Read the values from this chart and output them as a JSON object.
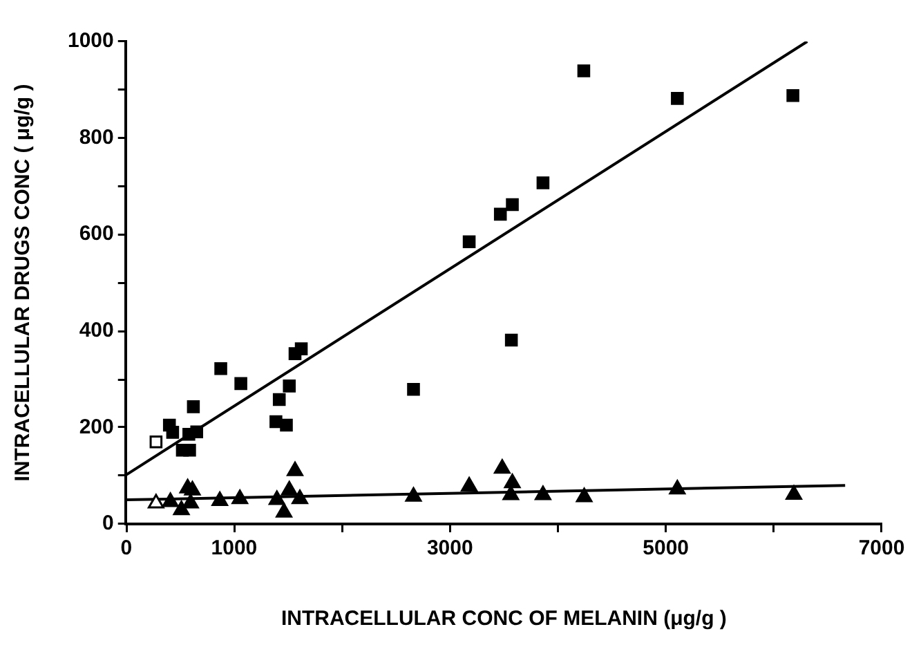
{
  "chart_data": {
    "type": "scatter",
    "xlabel": "INTRACELLULAR CONC OF MELANIN (μg/g )",
    "ylabel": "INTRACELLULAR DRUGS CONC ( μg/g )",
    "xlim": [
      0,
      7000
    ],
    "ylim": [
      0,
      1000
    ],
    "xticks": [
      0,
      1000,
      {
        "value": 2000,
        "label": null
      },
      3000,
      {
        "value": 4000,
        "label": null
      },
      5000,
      {
        "value": 6000,
        "label": null
      },
      7000
    ],
    "yticks": [
      0,
      {
        "value": 100,
        "label": null
      },
      200,
      {
        "value": 300,
        "label": null
      },
      400,
      {
        "value": 500,
        "label": null
      },
      600,
      {
        "value": 700,
        "label": null
      },
      800,
      {
        "value": 900,
        "label": null
      },
      1000
    ],
    "grid": false,
    "legend": false,
    "series": [
      {
        "color": "#000000",
        "marker": "square",
        "x": [
          276,
          400,
          430,
          520,
          587,
          622,
          580,
          653,
          876,
          1062,
          1387,
          1484,
          1418,
          1511,
          1564,
          1622,
          2662,
          3178,
          3467,
          3578,
          3862,
          4240,
          5107,
          6178,
          3569
        ],
        "values": [
          170,
          205,
          190,
          153,
          153,
          243,
          186,
          191,
          322,
          291,
          212,
          205,
          258,
          286,
          353,
          363,
          279,
          585,
          642,
          662,
          707,
          939,
          882,
          888,
          381
        ],
        "colors": [
          "#ffffff",
          "#000000",
          "#000000",
          "#000000",
          "#000000",
          "#000000",
          "#000000",
          "#000000",
          "#000000",
          "#000000",
          "#000000",
          "#000000",
          "#000000",
          "#000000",
          "#000000",
          "#000000",
          "#000000",
          "#000000",
          "#000000",
          "#000000",
          "#000000",
          "#000000",
          "#000000",
          "#000000",
          "#000000"
        ]
      },
      {
        "color": "#000000",
        "marker": "triangle",
        "x": [
          276,
          409,
          511,
          569,
          613,
          596,
          867,
          1053,
          1396,
          1462,
          1511,
          1564,
          1609,
          2662,
          3178,
          3484,
          3578,
          3564,
          3862,
          4244,
          5107,
          6187
        ],
        "values": [
          43,
          46,
          29,
          74,
          70,
          43,
          48,
          52,
          50,
          24,
          70,
          110,
          52,
          57,
          78,
          115,
          85,
          60,
          60,
          56,
          72,
          61
        ],
        "colors": [
          "#ffffff",
          "#000000",
          "#000000",
          "#000000",
          "#000000",
          "#000000",
          "#000000",
          "#000000",
          "#000000",
          "#000000",
          "#000000",
          "#000000",
          "#000000",
          "#000000",
          "#000000",
          "#000000",
          "#000000",
          "#000000",
          "#000000",
          "#000000",
          "#000000",
          "#000000"
        ]
      },
      {
        "type": "line",
        "color": "#000000",
        "marker": "none",
        "x": [
          0,
          6311
        ],
        "values": [
          102,
          1000
        ]
      },
      {
        "type": "line",
        "color": "#000000",
        "marker": "none",
        "x": [
          0,
          6662
        ],
        "values": [
          50,
          80
        ]
      }
    ]
  }
}
